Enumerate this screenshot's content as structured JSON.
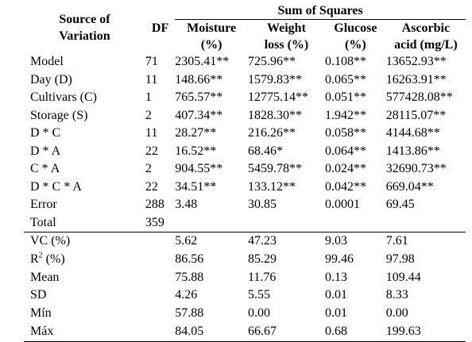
{
  "table": {
    "col_source": "Source of Variation",
    "col_source_l1": "Source of",
    "col_source_l2": "Variation",
    "col_df": "DF",
    "group_header": "Sum of Squares",
    "col_moisture_l1": "Moisture",
    "col_moisture_l2": "(%)",
    "col_weight_l1": "Weight",
    "col_weight_l2": "loss (%)",
    "col_glucose_l1": "Glucose",
    "col_glucose_l2": "(%)",
    "col_ascorbic_l1": "Ascorbic",
    "col_ascorbic_l2": "acid (mg/L)",
    "rows": [
      {
        "source": "Model",
        "df": "71",
        "moisture": "2305.41**",
        "weight": "725.96**",
        "glucose": "0.108**",
        "ascorbic": "13652.93**"
      },
      {
        "source": "Day (D)",
        "df": "11",
        "moisture": "148.66**",
        "weight": "1579.83**",
        "glucose": "0.065**",
        "ascorbic": "16263.91**"
      },
      {
        "source": "Cultivars (C)",
        "df": "1",
        "moisture": "765.57**",
        "weight": "12775.14**",
        "glucose": "0.051**",
        "ascorbic": "577428.08**"
      },
      {
        "source": "Storage (S)",
        "df": "2",
        "moisture": "407.34**",
        "weight": "1828.30**",
        "glucose": "1.942**",
        "ascorbic": "28115.07**"
      },
      {
        "source": "D * C",
        "df": "11",
        "moisture": "28.27**",
        "weight": "216.26**",
        "glucose": "0.058**",
        "ascorbic": "4144.68**"
      },
      {
        "source": "D * A",
        "df": "22",
        "moisture": "16.52**",
        "weight": "68.46*",
        "glucose": "0.064**",
        "ascorbic": "1413.86**"
      },
      {
        "source": "C * A",
        "df": "2",
        "moisture": "904.55**",
        "weight": "5459.78**",
        "glucose": "0.024**",
        "ascorbic": "32690.73**"
      },
      {
        "source": "D * C * A",
        "df": "22",
        "moisture": "34.51**",
        "weight": "133.12**",
        "glucose": "0.042**",
        "ascorbic": "669.04**"
      },
      {
        "source": "Error",
        "df": "288",
        "moisture": "3.48",
        "weight": "30.85",
        "glucose": "0.0001",
        "ascorbic": "69.45"
      },
      {
        "source": "Total",
        "df": "359",
        "moisture": "",
        "weight": "",
        "glucose": "",
        "ascorbic": ""
      }
    ],
    "stats": [
      {
        "label": "VC (%)",
        "moisture": "5.62",
        "weight": "47.23",
        "glucose": "9.03",
        "ascorbic": "7.61"
      },
      {
        "label_base": "R",
        "label_sup": "2",
        "label_rest": " (%)",
        "moisture": "86.56",
        "weight": "85.29",
        "glucose": "99.46",
        "ascorbic": "97.98"
      },
      {
        "label": "Mean",
        "moisture": "75.88",
        "weight": "11.76",
        "glucose": "0.13",
        "ascorbic": "109.44"
      },
      {
        "label": "SD",
        "moisture": "4.26",
        "weight": "5.55",
        "glucose": "0.01",
        "ascorbic": "8.33"
      },
      {
        "label": "Mín",
        "moisture": "57.88",
        "weight": "0.00",
        "glucose": "0.01",
        "ascorbic": "0.00"
      },
      {
        "label": "Máx",
        "moisture": "84.05",
        "weight": "66.67",
        "glucose": "0.68",
        "ascorbic": "199.63"
      }
    ]
  }
}
